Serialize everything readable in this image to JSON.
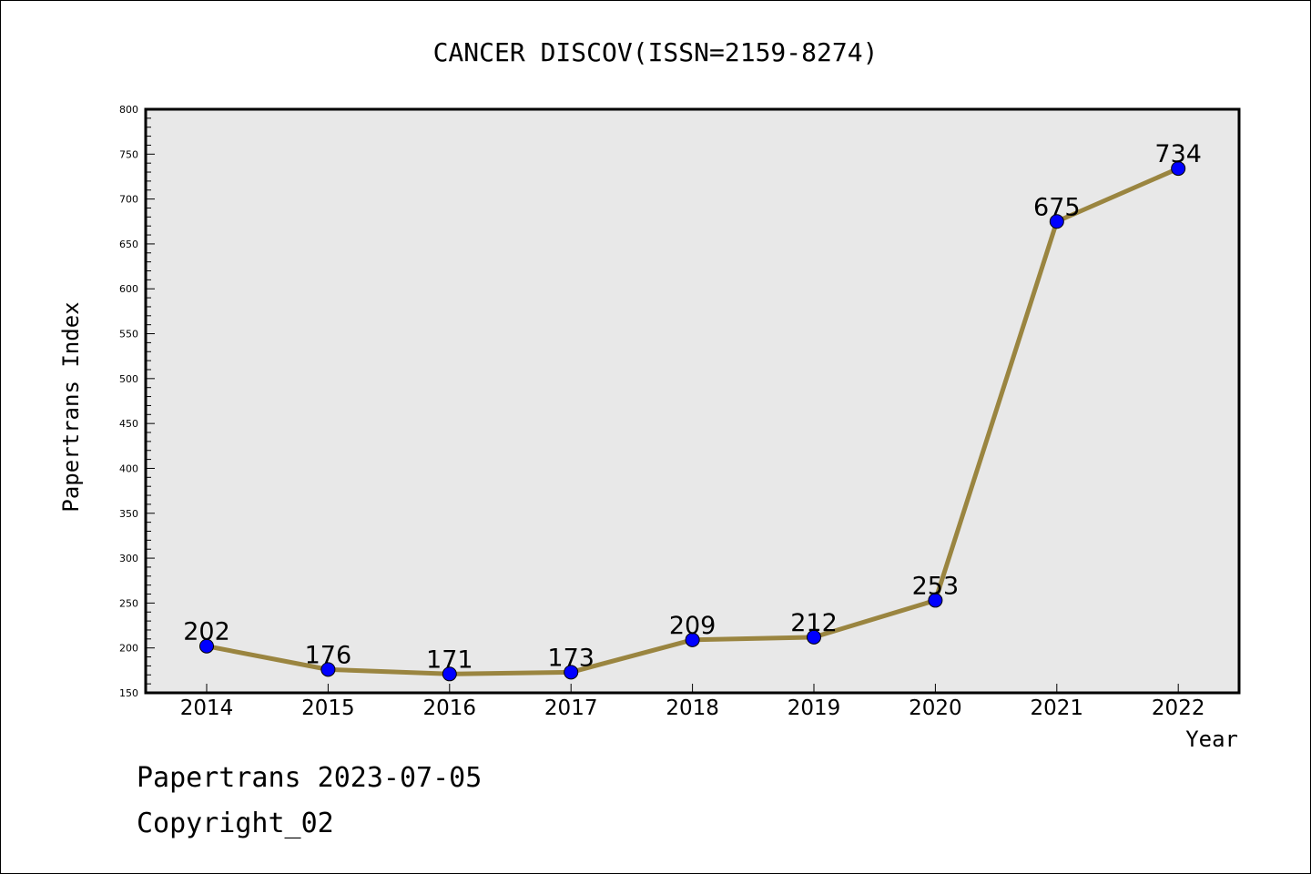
{
  "chart_data": {
    "type": "line",
    "title": "CANCER DISCOV(ISSN=2159-8274)",
    "xlabel": "Year",
    "ylabel": "Papertrans Index",
    "x": [
      "2014",
      "2015",
      "2016",
      "2017",
      "2018",
      "2019",
      "2020",
      "2021",
      "2022"
    ],
    "series": [
      {
        "values": [
          202,
          176,
          171,
          173,
          209,
          212,
          253,
          675,
          734
        ]
      }
    ],
    "ylim": [
      150,
      800
    ],
    "yticks": [
      "150",
      "200",
      "250",
      "300",
      "350",
      "400",
      "450",
      "500",
      "550",
      "600",
      "650",
      "700",
      "750",
      "800"
    ],
    "data_labels": [
      "202",
      "176",
      "171",
      "173",
      "209",
      "212",
      "253",
      "675",
      "734"
    ],
    "grid": false,
    "line_color": "#9a8540",
    "marker_color": "#0000ff",
    "plot_background": "#e8e8e8"
  },
  "footer": {
    "line1": "Papertrans 2023-07-05",
    "line2": "Copyright_02"
  }
}
